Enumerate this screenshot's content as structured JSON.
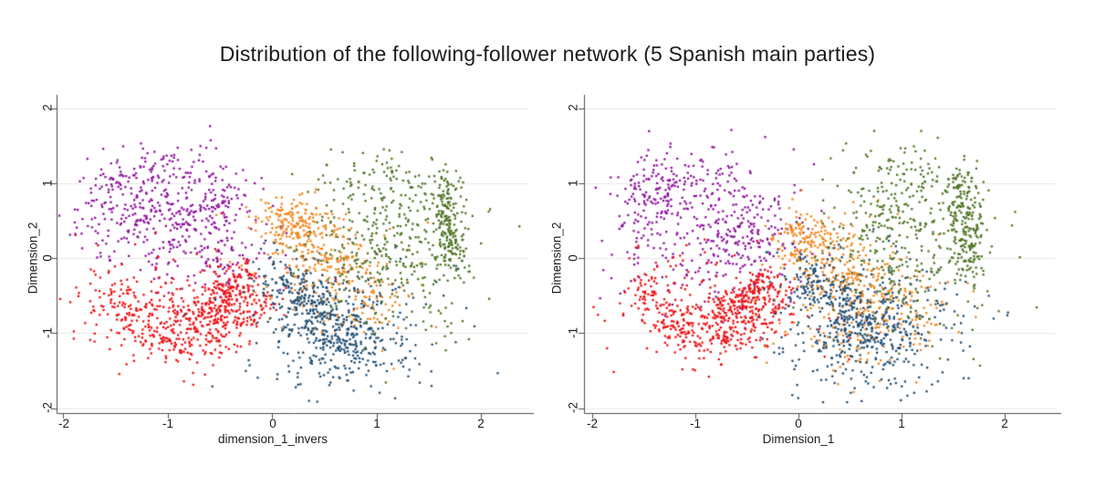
{
  "title": "Distribution of the following-follower network (5 Spanish main parties)",
  "chart_data": {
    "type": "scatter",
    "title": "Distribution of the following-follower network (5 Spanish main parties)",
    "layout": {
      "panels": 2,
      "legend": "none",
      "grid": "horizontal light gridlines at y = -2, -1, 0, 1, 2",
      "marker": "small filled square, ~2px",
      "grid_color": "#e8e8e8",
      "axis_color": "#4d4d4d",
      "background": "#ffffff"
    },
    "palette": {
      "purple": "#8e119c",
      "red": "#ee0f12",
      "orange": "#f28418",
      "navy": "#1f4d73",
      "green": "#4e7423"
    },
    "plots": [
      {
        "position": "left",
        "xlabel": "dimension_1_invers",
        "ylabel": "Dimension_2",
        "xlim": [
          -2,
          2
        ],
        "ylim": [
          -2,
          2
        ],
        "xticks": [
          "-2",
          "-1",
          "0",
          "1",
          "2"
        ],
        "yticks": [
          "2",
          "1",
          "0",
          "-1",
          "-2"
        ],
        "seed": 101,
        "series": [
          {
            "name": "cluster-purple",
            "color": "#8e119c",
            "segments": [
              {
                "type": "gauss",
                "n": 150,
                "cx": -1.35,
                "cy": 0.8,
                "sx": 0.22,
                "sy": 0.3
              },
              {
                "type": "gauss",
                "n": 110,
                "cx": -1.0,
                "cy": 0.55,
                "sx": 0.35,
                "sy": 0.4
              },
              {
                "type": "gauss",
                "n": 90,
                "cx": -0.52,
                "cy": 0.8,
                "sx": 0.18,
                "sy": 0.25
              },
              {
                "type": "gauss",
                "n": 90,
                "cx": -0.75,
                "cy": 0.25,
                "sx": 0.4,
                "sy": 0.3
              },
              {
                "type": "gauss",
                "n": 45,
                "cx": -0.95,
                "cy": 1.25,
                "sx": 0.28,
                "sy": 0.18
              },
              {
                "type": "gauss",
                "n": 45,
                "cx": -0.45,
                "cy": -0.05,
                "sx": 0.3,
                "sy": 0.25
              },
              {
                "type": "gauss",
                "n": 30,
                "cx": -1.1,
                "cy": 0.5,
                "sx": 0.6,
                "sy": 0.55
              }
            ]
          },
          {
            "name": "cluster-red",
            "color": "#ee0f12",
            "segments": [
              {
                "type": "arc",
                "n": 260,
                "cx": -0.8,
                "cy": -0.15,
                "rx": 0.72,
                "ry": 1.0,
                "a0": 185,
                "a1": 340,
                "j": 0.12
              },
              {
                "type": "line",
                "n": 200,
                "x0": -0.75,
                "y0": -0.85,
                "x1": -0.25,
                "y1": -0.2,
                "jx": 0.1,
                "jy": 0.12
              },
              {
                "type": "gauss",
                "n": 150,
                "cx": -0.95,
                "cy": -0.85,
                "sx": 0.35,
                "sy": 0.3
              },
              {
                "type": "gauss",
                "n": 80,
                "cx": -1.1,
                "cy": -0.45,
                "sx": 0.5,
                "sy": 0.4
              },
              {
                "type": "gauss",
                "n": 15,
                "cx": -0.4,
                "cy": -0.5,
                "sx": 0.45,
                "sy": 0.45
              }
            ]
          },
          {
            "name": "cluster-orange",
            "color": "#f28418",
            "segments": [
              {
                "type": "gauss",
                "n": 170,
                "cx": 0.22,
                "cy": 0.42,
                "sx": 0.16,
                "sy": 0.18
              },
              {
                "type": "line",
                "n": 140,
                "x0": 0.3,
                "y0": 0.15,
                "x1": 1.0,
                "y1": -0.55,
                "jx": 0.2,
                "jy": 0.2
              },
              {
                "type": "gauss",
                "n": 110,
                "cx": 0.5,
                "cy": -0.05,
                "sx": 0.4,
                "sy": 0.4
              },
              {
                "type": "gauss",
                "n": 50,
                "cx": 0.9,
                "cy": -0.5,
                "sx": 0.35,
                "sy": 0.35
              }
            ]
          },
          {
            "name": "cluster-navy",
            "color": "#1f4d73",
            "segments": [
              {
                "type": "line",
                "n": 260,
                "x0": 0.08,
                "y0": -0.2,
                "x1": 0.8,
                "y1": -1.2,
                "jx": 0.16,
                "jy": 0.16
              },
              {
                "type": "gauss",
                "n": 130,
                "cx": 0.62,
                "cy": -1.15,
                "sx": 0.32,
                "sy": 0.22
              },
              {
                "type": "gauss",
                "n": 140,
                "cx": 0.55,
                "cy": -0.7,
                "sx": 0.45,
                "sy": 0.4
              },
              {
                "type": "gauss",
                "n": 60,
                "cx": 1.0,
                "cy": -1.05,
                "sx": 0.45,
                "sy": 0.35
              },
              {
                "type": "gauss",
                "n": 30,
                "cx": 0.5,
                "cy": -1.6,
                "sx": 0.4,
                "sy": 0.15
              }
            ]
          },
          {
            "name": "cluster-green",
            "color": "#4e7423",
            "segments": [
              {
                "type": "line",
                "n": 190,
                "x0": 1.64,
                "y0": 1.0,
                "x1": 1.73,
                "y1": -0.1,
                "jx": 0.07,
                "jy": 0.14
              },
              {
                "type": "gauss",
                "n": 200,
                "cx": 1.25,
                "cy": 0.3,
                "sx": 0.35,
                "sy": 0.45
              },
              {
                "type": "gauss",
                "n": 110,
                "cx": 0.85,
                "cy": 0.25,
                "sx": 0.28,
                "sy": 0.5
              },
              {
                "type": "gauss",
                "n": 60,
                "cx": 1.05,
                "cy": 1.05,
                "sx": 0.3,
                "sy": 0.22
              },
              {
                "type": "gauss",
                "n": 50,
                "cx": 1.35,
                "cy": -0.55,
                "sx": 0.3,
                "sy": 0.35
              }
            ]
          }
        ]
      },
      {
        "position": "right",
        "xlabel": "Dimension_1",
        "ylabel": "Dimension_2",
        "xlim": [
          -2,
          2
        ],
        "ylim": [
          -2,
          2
        ],
        "xticks": [
          "-2",
          "-1",
          "0",
          "1",
          "2"
        ],
        "yticks": [
          "2",
          "1",
          "0",
          "-1",
          "-2"
        ],
        "seed": 202,
        "series": [
          {
            "name": "cluster-purple",
            "color": "#8e119c",
            "segments": [
              {
                "type": "gauss",
                "n": 140,
                "cx": -1.42,
                "cy": 0.85,
                "sx": 0.2,
                "sy": 0.28
              },
              {
                "type": "gauss",
                "n": 120,
                "cx": -0.55,
                "cy": 0.55,
                "sx": 0.25,
                "sy": 0.28
              },
              {
                "type": "gauss",
                "n": 140,
                "cx": -0.95,
                "cy": 0.3,
                "sx": 0.42,
                "sy": 0.42
              },
              {
                "type": "gauss",
                "n": 70,
                "cx": -0.5,
                "cy": -0.1,
                "sx": 0.32,
                "sy": 0.28
              },
              {
                "type": "gauss",
                "n": 40,
                "cx": -0.85,
                "cy": 1.2,
                "sx": 0.3,
                "sy": 0.18
              },
              {
                "type": "gauss",
                "n": 30,
                "cx": -1.0,
                "cy": 0.5,
                "sx": 0.6,
                "sy": 0.55
              }
            ]
          },
          {
            "name": "cluster-red",
            "color": "#ee0f12",
            "segments": [
              {
                "type": "arc",
                "n": 230,
                "cx": -0.78,
                "cy": -0.1,
                "rx": 0.7,
                "ry": 1.0,
                "a0": 185,
                "a1": 340,
                "j": 0.11
              },
              {
                "type": "line",
                "n": 180,
                "x0": -0.7,
                "y0": -0.8,
                "x1": -0.3,
                "y1": -0.25,
                "jx": 0.1,
                "jy": 0.12
              },
              {
                "type": "gauss",
                "n": 140,
                "cx": -0.9,
                "cy": -0.85,
                "sx": 0.33,
                "sy": 0.28
              },
              {
                "type": "gauss",
                "n": 70,
                "cx": -1.05,
                "cy": -0.45,
                "sx": 0.5,
                "sy": 0.4
              },
              {
                "type": "gauss",
                "n": 20,
                "cx": -0.1,
                "cy": -1.1,
                "sx": 0.35,
                "sy": 0.3
              }
            ]
          },
          {
            "name": "cluster-orange",
            "color": "#f28418",
            "segments": [
              {
                "type": "gauss",
                "n": 150,
                "cx": 0.1,
                "cy": 0.28,
                "sx": 0.2,
                "sy": 0.2
              },
              {
                "type": "line",
                "n": 170,
                "x0": 0.2,
                "y0": 0.0,
                "x1": 1.0,
                "y1": -0.75,
                "jx": 0.22,
                "jy": 0.2
              },
              {
                "type": "gauss",
                "n": 120,
                "cx": 0.5,
                "cy": -0.4,
                "sx": 0.45,
                "sy": 0.45
              },
              {
                "type": "gauss",
                "n": 60,
                "cx": 0.85,
                "cy": -0.8,
                "sx": 0.4,
                "sy": 0.3
              },
              {
                "type": "gauss",
                "n": 40,
                "cx": 0.3,
                "cy": -1.25,
                "sx": 0.4,
                "sy": 0.25
              }
            ]
          },
          {
            "name": "cluster-navy",
            "color": "#1f4d73",
            "segments": [
              {
                "type": "line",
                "n": 250,
                "x0": 0.02,
                "y0": -0.15,
                "x1": 0.8,
                "y1": -1.05,
                "jx": 0.17,
                "jy": 0.17
              },
              {
                "type": "gauss",
                "n": 130,
                "cx": 0.6,
                "cy": -1.15,
                "sx": 0.35,
                "sy": 0.25
              },
              {
                "type": "gauss",
                "n": 140,
                "cx": 0.65,
                "cy": -0.6,
                "sx": 0.5,
                "sy": 0.4
              },
              {
                "type": "gauss",
                "n": 60,
                "cx": 1.05,
                "cy": -0.9,
                "sx": 0.4,
                "sy": 0.35
              },
              {
                "type": "gauss",
                "n": 40,
                "cx": 0.6,
                "cy": -1.6,
                "sx": 0.45,
                "sy": 0.18
              }
            ]
          },
          {
            "name": "cluster-green",
            "color": "#4e7423",
            "segments": [
              {
                "type": "line",
                "n": 200,
                "x0": 1.58,
                "y0": 1.1,
                "x1": 1.68,
                "y1": -0.2,
                "jx": 0.08,
                "jy": 0.15
              },
              {
                "type": "gauss",
                "n": 210,
                "cx": 1.15,
                "cy": 0.35,
                "sx": 0.38,
                "sy": 0.5
              },
              {
                "type": "gauss",
                "n": 110,
                "cx": 0.78,
                "cy": 0.3,
                "sx": 0.3,
                "sy": 0.45
              },
              {
                "type": "gauss",
                "n": 55,
                "cx": 1.0,
                "cy": 1.1,
                "sx": 0.3,
                "sy": 0.2
              },
              {
                "type": "gauss",
                "n": 45,
                "cx": 1.2,
                "cy": -0.65,
                "sx": 0.32,
                "sy": 0.35
              }
            ]
          }
        ]
      }
    ]
  }
}
